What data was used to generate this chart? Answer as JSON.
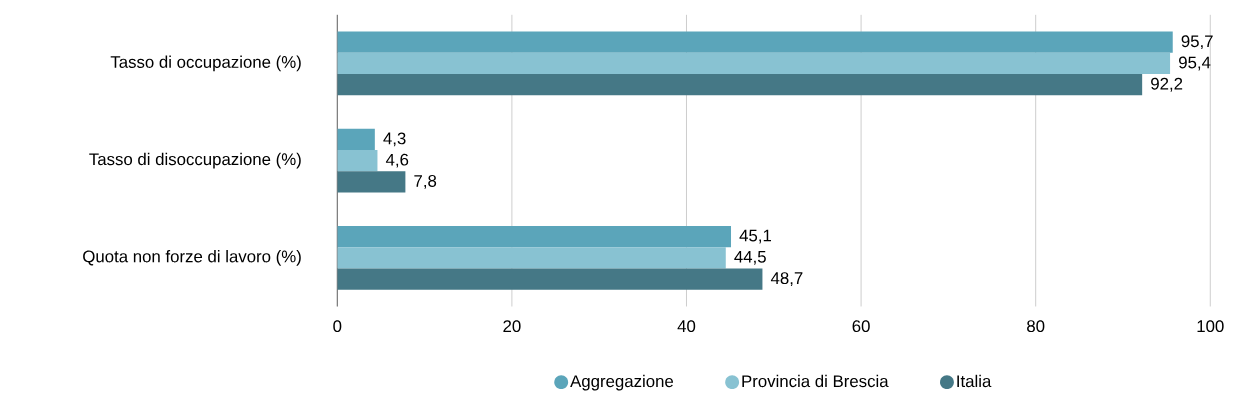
{
  "chart_data": {
    "type": "bar",
    "orientation": "horizontal",
    "categories": [
      "Tasso di occupazione (%)",
      "Tasso di disoccupazione (%)",
      "Quota non forze di lavoro (%)"
    ],
    "series": [
      {
        "name": "Aggregazione",
        "color": "#5ba5ba",
        "values": [
          95.7,
          4.3,
          45.1
        ],
        "value_labels": [
          "95,7",
          "4,3",
          "45,1"
        ]
      },
      {
        "name": "Provincia di Brescia",
        "color": "#88c2d2",
        "values": [
          95.4,
          4.6,
          44.5
        ],
        "value_labels": [
          "95,4",
          "4,6",
          "44,5"
        ]
      },
      {
        "name": "Italia",
        "color": "#457886",
        "values": [
          92.2,
          7.8,
          48.7
        ],
        "value_labels": [
          "92,2",
          "7,8",
          "48,7"
        ]
      }
    ],
    "xlim": [
      0,
      100
    ],
    "xticks": [
      0,
      20,
      40,
      60,
      80,
      100
    ],
    "grid": "x",
    "legend": "bottom"
  }
}
